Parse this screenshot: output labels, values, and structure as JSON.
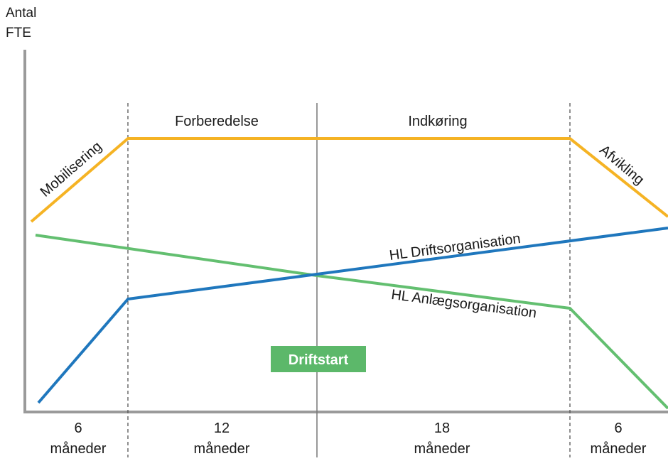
{
  "y_axis_label": [
    "Antal",
    "FTE"
  ],
  "phases": {
    "mobilisering": "Mobilisering",
    "forberedelse": "Forberedelse",
    "indkoring": "Indkøring",
    "afvikling": "Afvikling"
  },
  "series_labels": {
    "drift": "HL Driftsorganisation",
    "anlaeg": "HL Anlægsorganisation"
  },
  "badge": {
    "label": "Driftstart",
    "color": "#5cb86a"
  },
  "durations": [
    {
      "value": "6",
      "unit": "måneder"
    },
    {
      "value": "12",
      "unit": "måneder"
    },
    {
      "value": "18",
      "unit": "måneder"
    },
    {
      "value": "6",
      "unit": "måneder"
    }
  ],
  "colors": {
    "total": "#f5b324",
    "drift": "#1f77bd",
    "anlaeg": "#63bf70",
    "axis": "#9a9a9a"
  }
}
